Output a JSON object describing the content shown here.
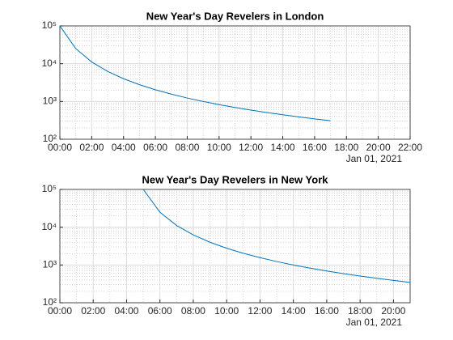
{
  "chart_data": [
    {
      "type": "line",
      "title": "New Year's Day Revelers in London",
      "x": [
        "00:00",
        "01:00",
        "02:00",
        "03:00",
        "04:00",
        "05:00",
        "06:00",
        "07:00",
        "08:00",
        "09:00",
        "10:00",
        "11:00",
        "12:00",
        "13:00",
        "14:00",
        "15:00",
        "16:00",
        "17:00"
      ],
      "values": [
        100000,
        25000,
        11111,
        6250,
        4000,
        2778,
        2041,
        1563,
        1235,
        1000,
        826,
        694,
        592,
        510,
        444,
        391,
        346,
        309
      ],
      "color": "#0072bd",
      "xlim": [
        "00:00",
        "22:00"
      ],
      "xticks": [
        "00:00",
        "02:00",
        "04:00",
        "06:00",
        "08:00",
        "10:00",
        "12:00",
        "14:00",
        "16:00",
        "18:00",
        "20:00",
        "22:00"
      ],
      "x_secondary_label": "Jan 01, 2021",
      "ylim": [
        100,
        100000
      ],
      "yticks": [
        {
          "value": 100,
          "label": "10²"
        },
        {
          "value": 1000,
          "label": "10³"
        },
        {
          "value": 10000,
          "label": "10⁴"
        },
        {
          "value": 100000,
          "label": "10⁵"
        }
      ],
      "log_y": true,
      "grid": true,
      "minor_grid": true
    },
    {
      "type": "line",
      "title": "New Year's Day Revelers in New York",
      "x": [
        "05:00",
        "06:00",
        "07:00",
        "08:00",
        "09:00",
        "10:00",
        "11:00",
        "12:00",
        "13:00",
        "14:00",
        "15:00",
        "16:00",
        "17:00",
        "18:00",
        "19:00",
        "20:00",
        "21:00"
      ],
      "values": [
        100000,
        25000,
        11111,
        6250,
        4000,
        2778,
        2041,
        1563,
        1235,
        1000,
        826,
        694,
        592,
        510,
        444,
        391,
        346
      ],
      "color": "#0072bd",
      "xlim": [
        "00:00",
        "21:00"
      ],
      "xticks": [
        "00:00",
        "02:00",
        "04:00",
        "06:00",
        "08:00",
        "10:00",
        "12:00",
        "14:00",
        "16:00",
        "18:00",
        "20:00"
      ],
      "x_secondary_label": "Jan 01, 2021",
      "ylim": [
        100,
        100000
      ],
      "yticks": [
        {
          "value": 100,
          "label": "10²"
        },
        {
          "value": 1000,
          "label": "10³"
        },
        {
          "value": 10000,
          "label": "10⁴"
        },
        {
          "value": 100000,
          "label": "10⁵"
        }
      ],
      "log_y": true,
      "grid": true,
      "minor_grid": true
    }
  ]
}
